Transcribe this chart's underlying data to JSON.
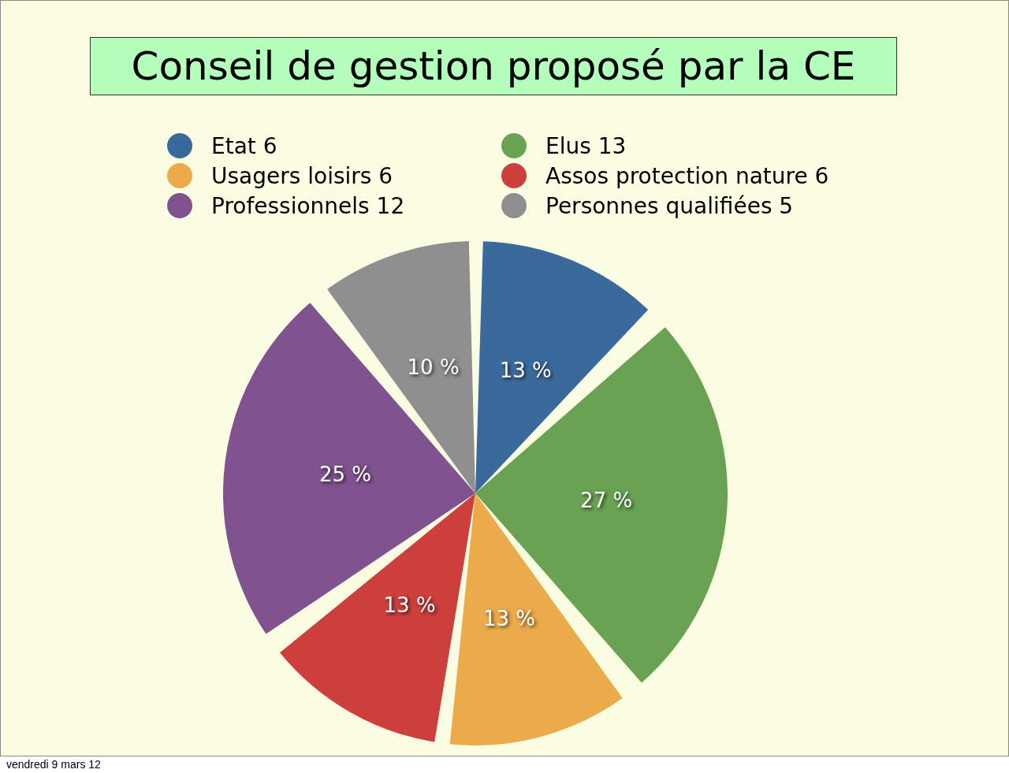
{
  "chart_data": {
    "type": "pie",
    "title": "Conseil de gestion proposé par la CE",
    "categories": [
      "Etat 6",
      "Elus 13",
      "Usagers loisirs 6",
      "Assos protection nature 6",
      "Professionnels 12",
      "Personnes qualifiées 5"
    ],
    "values": [
      12.5,
      27.1,
      12.5,
      12.5,
      25,
      10.4
    ],
    "colors": [
      "#3a6a9c",
      "#6aa253",
      "#ebab4a",
      "#cc3f3c",
      "#80528f",
      "#8f8f8f"
    ],
    "value_labels": [
      "13 %",
      "27 %",
      "13 %",
      "13 %",
      "25 %",
      "10 %"
    ],
    "legend": "top",
    "annotations": [
      "vendredi 9 mars 12"
    ]
  }
}
